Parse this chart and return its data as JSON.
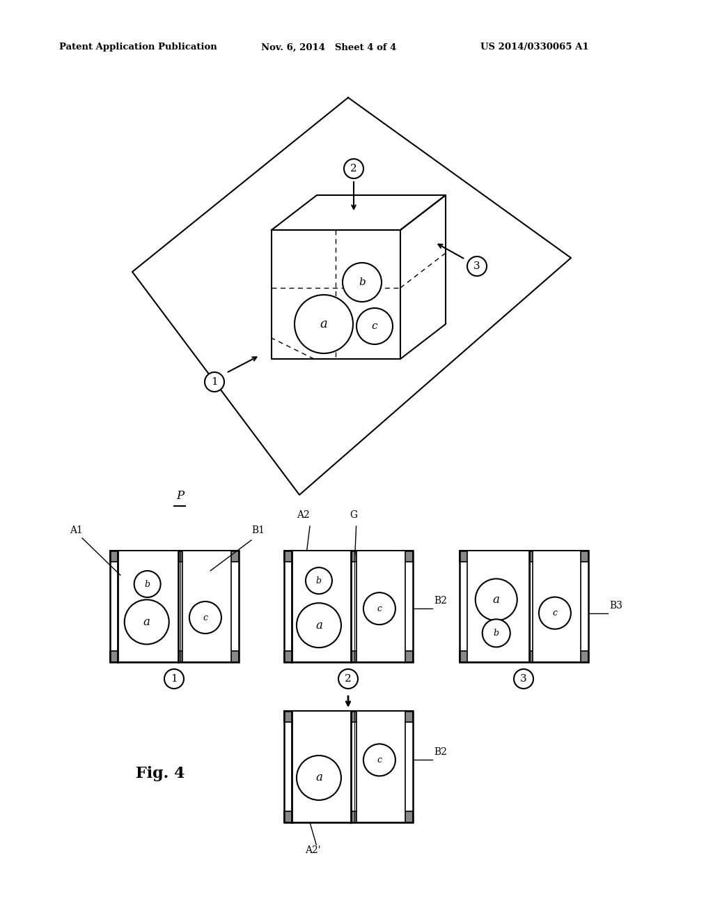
{
  "header_left": "Patent Application Publication",
  "header_mid": "Nov. 6, 2014   Sheet 4 of 4",
  "header_right": "US 2014/0330065 A1",
  "fig_label": "Fig. 4",
  "bg_color": "#ffffff",
  "line_color": "#000000"
}
